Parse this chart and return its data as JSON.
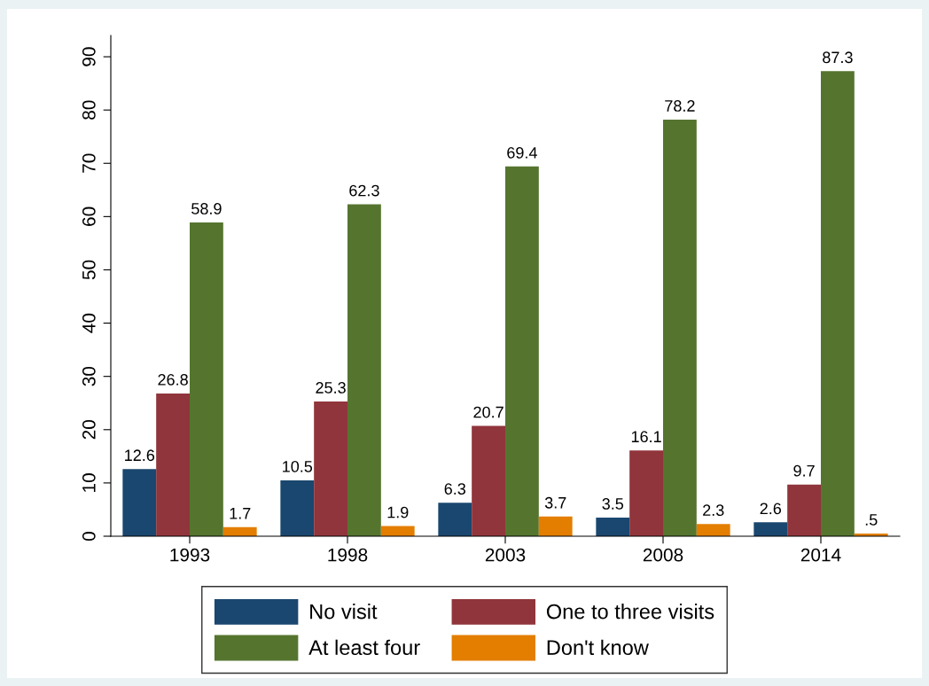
{
  "chart_data": {
    "type": "bar",
    "categories": [
      "1993",
      "1998",
      "2003",
      "2008",
      "2014"
    ],
    "series": [
      {
        "name": "No visit",
        "color": "#1a476f",
        "values": [
          12.6,
          10.5,
          6.3,
          3.5,
          2.6
        ],
        "value_labels": [
          "12.6",
          "10.5",
          "6.3",
          "3.5",
          "2.6"
        ]
      },
      {
        "name": "One to three visits",
        "color": "#90353b",
        "values": [
          26.8,
          25.3,
          20.7,
          16.1,
          9.7
        ],
        "value_labels": [
          "26.8",
          "25.3",
          "20.7",
          "16.1",
          "9.7"
        ]
      },
      {
        "name": "At least four",
        "color": "#55752f",
        "values": [
          58.9,
          62.3,
          69.4,
          78.2,
          87.3
        ],
        "value_labels": [
          "58.9",
          "62.3",
          "69.4",
          "78.2",
          "87.3"
        ]
      },
      {
        "name": "Don't know",
        "color": "#e37e00",
        "values": [
          1.7,
          1.9,
          3.7,
          2.3,
          0.5
        ],
        "value_labels": [
          "1.7",
          "1.9",
          "3.7",
          "2.3",
          ".5"
        ]
      }
    ],
    "ylim": [
      0,
      94
    ],
    "yticks": [
      0,
      10,
      20,
      30,
      40,
      50,
      60,
      70,
      80,
      90
    ],
    "grid": false,
    "legend": "bottom"
  }
}
